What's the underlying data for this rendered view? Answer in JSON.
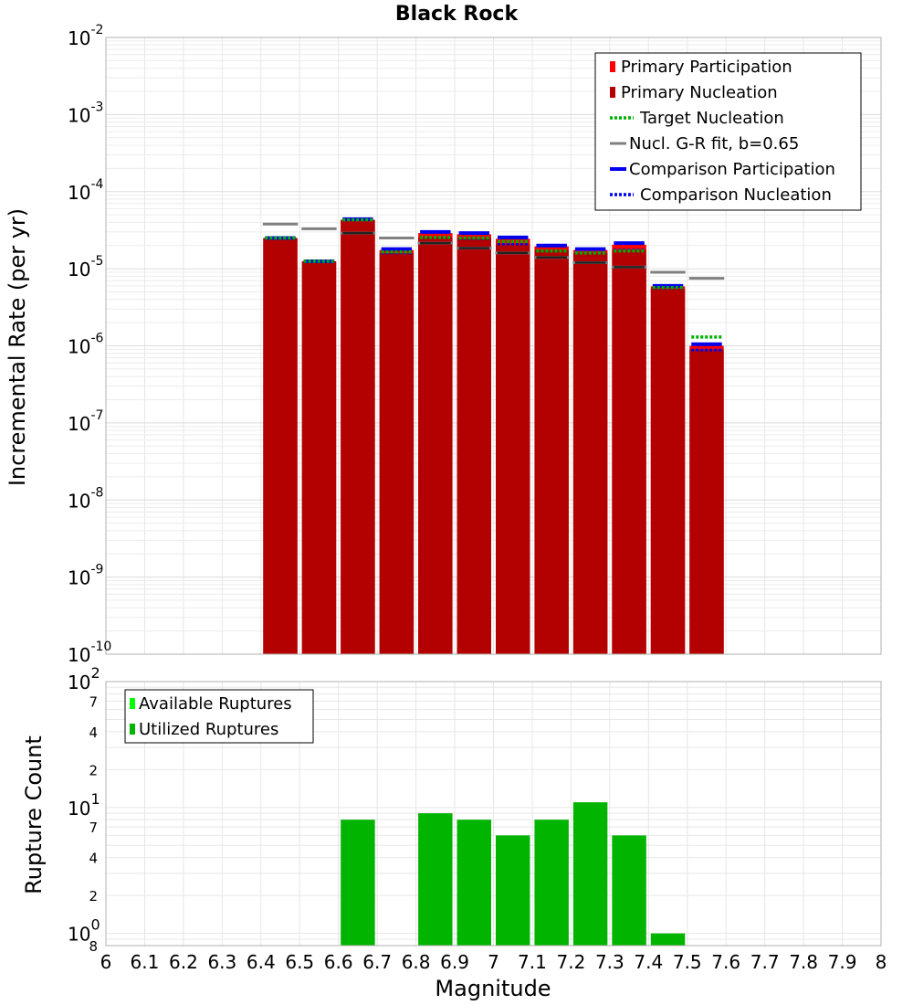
{
  "title": "Black Rock",
  "colors": {
    "primary_participation": "#ff0000",
    "primary_nucleation": "#b30000",
    "target_nucleation": "#00b000",
    "gr_fit": "#808080",
    "comparison": "#0000ee",
    "available_ruptures": "#00ff00",
    "utilized_ruptures": "#00b400",
    "inner_marker": "#222222"
  },
  "chart_data": [
    {
      "type": "bar",
      "ylabel": "Incremental Rate (per yr)",
      "xlabel": "",
      "xlim": [
        6,
        8
      ],
      "ylim": [
        1e-10,
        0.01
      ],
      "yscale": "log",
      "grid": true,
      "legend_position": "top-right",
      "bin_width": 0.1,
      "x": [
        6.45,
        6.55,
        6.65,
        6.75,
        6.85,
        6.95,
        7.05,
        7.15,
        7.25,
        7.35,
        7.45,
        7.55
      ],
      "y_tick_exponents": [
        "-2",
        "-3",
        "-4",
        "-5",
        "-6",
        "-7",
        "-8",
        "-9",
        "-10"
      ],
      "legend": [
        "Primary Participation",
        "Primary Nucleation",
        "Target Nucleation",
        "Nucl. G-R fit, b=0.65",
        "Comparison Participation",
        "Comparison Nucleation"
      ],
      "series": [
        {
          "name": "Primary Participation",
          "values": [
            2.5e-05,
            1.25e-05,
            4.3e-05,
            1.75e-05,
            2.9e-05,
            2.8e-05,
            2.45e-05,
            1.95e-05,
            1.75e-05,
            2.05e-05,
            5.9e-06,
            1e-06
          ]
        },
        {
          "name": "Primary Nucleation",
          "values": [
            2.5e-05,
            1.25e-05,
            4.3e-05,
            1.6e-05,
            2.55e-05,
            2.5e-05,
            2.1e-05,
            1.75e-05,
            1.6e-05,
            1.75e-05,
            5.5e-06,
            9e-07
          ]
        },
        {
          "name": "Target Nucleation",
          "values": [
            2.5e-05,
            1.25e-05,
            4.3e-05,
            1.65e-05,
            2.55e-05,
            2.5e-05,
            2.25e-05,
            1.7e-05,
            1.6e-05,
            1.7e-05,
            5.7e-06,
            1.3e-06
          ]
        },
        {
          "name": "Nucl. G-R fit, b=0.65",
          "values": [
            3.8e-05,
            3.3e-05,
            2.9e-05,
            2.5e-05,
            2.15e-05,
            1.85e-05,
            1.6e-05,
            1.4e-05,
            1.2e-05,
            1.05e-05,
            9e-06,
            7.5e-06
          ]
        },
        {
          "name": "Comparison Participation",
          "values": [
            2.5e-05,
            1.25e-05,
            4.4e-05,
            1.8e-05,
            3e-05,
            2.9e-05,
            2.55e-05,
            2e-05,
            1.8e-05,
            2.15e-05,
            6e-06,
            1.05e-06
          ]
        },
        {
          "name": "Comparison Nucleation",
          "values": [
            2.5e-05,
            1.25e-05,
            4.3e-05,
            1.6e-05,
            2.55e-05,
            2.45e-05,
            2.1e-05,
            1.7e-05,
            1.6e-05,
            1.75e-05,
            5.6e-06,
            8.8e-07
          ]
        },
        {
          "name": "",
          "values": [
            null,
            null,
            2.9e-05,
            null,
            2.15e-05,
            1.85e-05,
            1.6e-05,
            1.4e-05,
            1.2e-05,
            1.05e-05,
            null,
            null
          ]
        }
      ]
    },
    {
      "type": "bar",
      "ylabel": "Rupture Count",
      "xlabel": "Magnitude",
      "xlim": [
        6,
        8
      ],
      "ylim": [
        0.8,
        100
      ],
      "yscale": "log",
      "grid": true,
      "legend_position": "top-left",
      "bin_width": 0.1,
      "x_tick_labels": [
        "6",
        "6.1",
        "6.2",
        "6.3",
        "6.4",
        "6.5",
        "6.6",
        "6.7",
        "6.8",
        "6.9",
        "7",
        "7.1",
        "7.2",
        "7.3",
        "7.4",
        "7.5",
        "7.6",
        "7.7",
        "7.8",
        "7.9",
        "8"
      ],
      "y_major_ticks": [
        {
          "value": 100,
          "label": "10",
          "exp": "2"
        },
        {
          "value": 10,
          "label": "10",
          "exp": "1"
        },
        {
          "value": 1,
          "label": "10",
          "exp": "0"
        }
      ],
      "y_minor_ticks": [
        {
          "value": 70,
          "label": "7"
        },
        {
          "value": 40,
          "label": "4"
        },
        {
          "value": 20,
          "label": "2"
        },
        {
          "value": 7,
          "label": "7"
        },
        {
          "value": 4,
          "label": "4"
        },
        {
          "value": 2,
          "label": "2"
        },
        {
          "value": 0.8,
          "label": "8"
        }
      ],
      "legend": [
        "Available Ruptures",
        "Utilized Ruptures"
      ],
      "x": [
        6.65,
        6.85,
        6.95,
        7.05,
        7.15,
        7.25,
        7.35,
        7.45
      ],
      "series": [
        {
          "name": "Utilized Ruptures",
          "values": [
            8,
            9,
            8,
            6,
            8,
            11,
            6,
            1
          ]
        }
      ]
    }
  ]
}
